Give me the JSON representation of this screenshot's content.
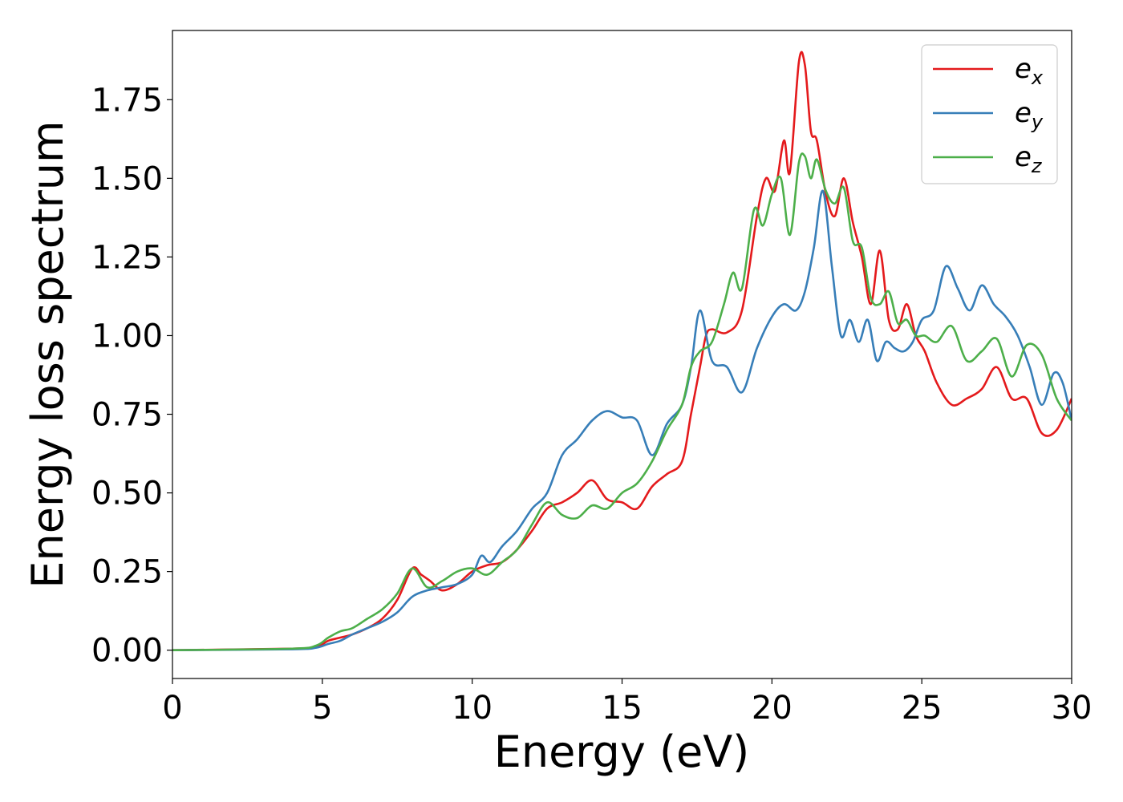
{
  "chart_data": {
    "type": "line",
    "xlabel": "Energy (eV)",
    "ylabel": "Energy loss spectrum",
    "xlim": [
      0,
      30
    ],
    "ylim": [
      -0.09,
      1.97
    ],
    "xticks": [
      0,
      5,
      10,
      15,
      20,
      25,
      30
    ],
    "xtick_labels": [
      "0",
      "5",
      "10",
      "15",
      "20",
      "25",
      "30"
    ],
    "yticks": [
      0.0,
      0.25,
      0.5,
      0.75,
      1.0,
      1.25,
      1.5,
      1.75
    ],
    "ytick_labels": [
      "0.00",
      "0.25",
      "0.50",
      "0.75",
      "1.00",
      "1.25",
      "1.50",
      "1.75"
    ],
    "grid": false,
    "legend_position": "top-right",
    "series": [
      {
        "name": "e",
        "subscript": "x",
        "color": "#e41a1c",
        "x": [
          0,
          4,
          4.8,
          5.2,
          5.6,
          6,
          6.5,
          7,
          7.5,
          8,
          8.3,
          8.6,
          9,
          9.5,
          10,
          10.5,
          11,
          11.5,
          12,
          12.5,
          13,
          13.5,
          14,
          14.5,
          15,
          15.5,
          16,
          16.5,
          17,
          17.3,
          17.6,
          17.8,
          18,
          18.5,
          19,
          19.5,
          19.8,
          20.1,
          20.4,
          20.6,
          20.9,
          21.1,
          21.3,
          21.5,
          21.8,
          22.1,
          22.4,
          22.7,
          23,
          23.3,
          23.6,
          23.9,
          24.2,
          24.5,
          24.8,
          25.1,
          25.5,
          26,
          26.5,
          27,
          27.5,
          28,
          28.5,
          29,
          29.5,
          30
        ],
        "y": [
          0,
          0.005,
          0.01,
          0.03,
          0.04,
          0.05,
          0.07,
          0.1,
          0.16,
          0.26,
          0.24,
          0.22,
          0.19,
          0.21,
          0.25,
          0.27,
          0.28,
          0.32,
          0.38,
          0.45,
          0.47,
          0.5,
          0.54,
          0.48,
          0.47,
          0.45,
          0.52,
          0.56,
          0.6,
          0.75,
          0.9,
          1.0,
          1.02,
          1.01,
          1.08,
          1.38,
          1.5,
          1.46,
          1.62,
          1.52,
          1.87,
          1.86,
          1.65,
          1.62,
          1.45,
          1.38,
          1.5,
          1.36,
          1.25,
          1.1,
          1.27,
          1.05,
          1.02,
          1.1,
          1.0,
          0.95,
          0.85,
          0.78,
          0.8,
          0.83,
          0.9,
          0.8,
          0.8,
          0.69,
          0.7,
          0.8
        ]
      },
      {
        "name": "e",
        "subscript": "y",
        "color": "#377eb8",
        "x": [
          0,
          4,
          4.8,
          5.2,
          5.6,
          6,
          6.5,
          7,
          7.5,
          8,
          8.5,
          9,
          9.5,
          10,
          10.3,
          10.6,
          11,
          11.5,
          12,
          12.5,
          13,
          13.5,
          14,
          14.5,
          15,
          15.5,
          16,
          16.5,
          17,
          17.3,
          17.6,
          18,
          18.5,
          19,
          19.5,
          20,
          20.4,
          20.8,
          21.1,
          21.4,
          21.7,
          22,
          22.3,
          22.6,
          22.9,
          23.2,
          23.5,
          23.8,
          24.1,
          24.4,
          24.7,
          25,
          25.4,
          25.8,
          26.2,
          26.6,
          27,
          27.4,
          27.8,
          28.2,
          28.6,
          29,
          29.4,
          29.7,
          30
        ],
        "y": [
          0,
          0.003,
          0.008,
          0.02,
          0.03,
          0.05,
          0.07,
          0.09,
          0.12,
          0.17,
          0.19,
          0.2,
          0.21,
          0.24,
          0.3,
          0.28,
          0.33,
          0.38,
          0.45,
          0.5,
          0.62,
          0.67,
          0.73,
          0.76,
          0.74,
          0.73,
          0.62,
          0.72,
          0.78,
          0.9,
          1.08,
          0.92,
          0.9,
          0.82,
          0.96,
          1.06,
          1.1,
          1.08,
          1.14,
          1.28,
          1.46,
          1.22,
          1.0,
          1.05,
          0.98,
          1.05,
          0.92,
          0.98,
          0.96,
          0.95,
          0.98,
          1.05,
          1.08,
          1.22,
          1.15,
          1.08,
          1.16,
          1.1,
          1.06,
          1.0,
          0.9,
          0.78,
          0.88,
          0.85,
          0.73
        ]
      },
      {
        "name": "e",
        "subscript": "z",
        "color": "#4daf4a",
        "x": [
          0,
          4,
          4.8,
          5.2,
          5.6,
          6,
          6.5,
          7,
          7.5,
          8,
          8.5,
          9,
          9.5,
          10,
          10.5,
          11,
          11.5,
          12,
          12.5,
          13,
          13.5,
          14,
          14.5,
          15,
          15.5,
          16,
          16.5,
          17,
          17.3,
          17.6,
          18,
          18.4,
          18.7,
          19,
          19.4,
          19.7,
          20,
          20.3,
          20.6,
          20.9,
          21.1,
          21.3,
          21.5,
          21.8,
          22.1,
          22.4,
          22.7,
          23,
          23.3,
          23.6,
          23.9,
          24.2,
          24.5,
          24.8,
          25.1,
          25.5,
          26,
          26.5,
          27,
          27.5,
          28,
          28.5,
          29,
          29.5,
          30
        ],
        "y": [
          0,
          0.005,
          0.015,
          0.04,
          0.06,
          0.07,
          0.1,
          0.13,
          0.18,
          0.26,
          0.2,
          0.22,
          0.25,
          0.26,
          0.24,
          0.28,
          0.32,
          0.4,
          0.47,
          0.43,
          0.42,
          0.46,
          0.45,
          0.5,
          0.53,
          0.6,
          0.7,
          0.78,
          0.9,
          0.95,
          0.98,
          1.1,
          1.2,
          1.15,
          1.4,
          1.35,
          1.45,
          1.5,
          1.32,
          1.55,
          1.57,
          1.5,
          1.56,
          1.46,
          1.42,
          1.47,
          1.3,
          1.28,
          1.12,
          1.1,
          1.14,
          1.04,
          1.05,
          1.0,
          1.0,
          0.98,
          1.03,
          0.92,
          0.95,
          0.99,
          0.87,
          0.97,
          0.94,
          0.8,
          0.73
        ]
      }
    ]
  }
}
